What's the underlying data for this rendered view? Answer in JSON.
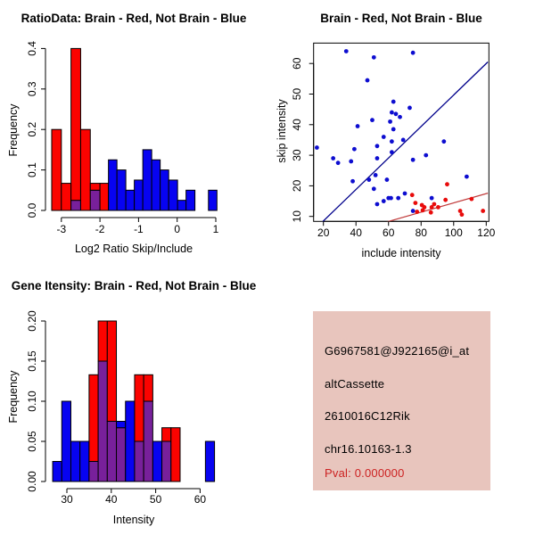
{
  "colors": {
    "hist_red": "#fb0300",
    "hist_blue": "#0703f1",
    "overlap_purple": "#78209b",
    "scatter_blue": "#0d0dd0",
    "scatter_red": "#e80b0b",
    "blue_line": "#00008b",
    "red_line": "#c03a3a",
    "info_bg": "#e8c5bd",
    "pval_red": "#cc2222",
    "text": "#000000"
  },
  "chart_data": [
    {
      "type": "bar",
      "subtype": "overlaid-histogram",
      "title": "RatioData: Brain - Red, Not Brain - Blue",
      "xlabel": "Log2 Ratio Skip/Include",
      "ylabel": "Frequency",
      "series_names": [
        "Brain (red)",
        "Not Brain (blue)"
      ],
      "x_ticks": [
        -3,
        -2,
        -1,
        0,
        1
      ],
      "y_ticks": [
        "0.0",
        "0.1",
        "0.2",
        "0.3",
        "0.4"
      ],
      "xlim": [
        -3.45,
        1.15
      ],
      "ylim": [
        0,
        0.4
      ],
      "grid": false,
      "bars": [
        {
          "x0": -3.25,
          "x1": -3.0,
          "red": 0.2,
          "blue": 0
        },
        {
          "x0": -3.0,
          "x1": -2.75,
          "red": 0.067,
          "blue": 0
        },
        {
          "x0": -2.75,
          "x1": -2.5,
          "red": 0.4,
          "blue": 0.025
        },
        {
          "x0": -2.5,
          "x1": -2.25,
          "red": 0.2,
          "blue": 0
        },
        {
          "x0": -2.25,
          "x1": -2.0,
          "red": 0.067,
          "blue": 0.05
        },
        {
          "x0": -2.0,
          "x1": -1.78,
          "red": 0.067,
          "blue": 0
        },
        {
          "x0": -1.78,
          "x1": -1.56,
          "red": 0,
          "blue": 0.125
        },
        {
          "x0": -1.56,
          "x1": -1.33,
          "red": 0,
          "blue": 0.1
        },
        {
          "x0": -1.33,
          "x1": -1.11,
          "red": 0,
          "blue": 0.05
        },
        {
          "x0": -1.11,
          "x1": -0.89,
          "red": 0,
          "blue": 0.075
        },
        {
          "x0": -0.89,
          "x1": -0.66,
          "red": 0,
          "blue": 0.15
        },
        {
          "x0": -0.66,
          "x1": -0.44,
          "red": 0,
          "blue": 0.125
        },
        {
          "x0": -0.44,
          "x1": -0.22,
          "red": 0,
          "blue": 0.1
        },
        {
          "x0": -0.22,
          "x1": 0.01,
          "red": 0,
          "blue": 0.075
        },
        {
          "x0": 0.01,
          "x1": 0.23,
          "red": 0,
          "blue": 0.025
        },
        {
          "x0": 0.23,
          "x1": 0.46,
          "red": 0,
          "blue": 0.05
        },
        {
          "x0": 0.81,
          "x1": 1.03,
          "red": 0,
          "blue": 0.05
        }
      ]
    },
    {
      "type": "scatter",
      "title": "Brain - Red, Not Brain - Blue",
      "xlabel": "include intensity",
      "ylabel": "skip intensity",
      "series_names": [
        "Brain (red)",
        "Not Brain (blue)"
      ],
      "x_ticks": [
        20,
        40,
        60,
        80,
        100,
        120
      ],
      "y_ticks": [
        10,
        20,
        30,
        40,
        50,
        60
      ],
      "xlim": [
        14,
        126
      ],
      "ylim": [
        7,
        66
      ],
      "grid": false,
      "blue_points": [
        [
          16,
          32.5
        ],
        [
          26,
          29
        ],
        [
          29,
          27.5
        ],
        [
          34,
          64
        ],
        [
          37,
          28
        ],
        [
          38,
          21.5
        ],
        [
          39,
          32
        ],
        [
          41,
          39.5
        ],
        [
          47,
          54.5
        ],
        [
          48,
          22
        ],
        [
          50,
          41.5
        ],
        [
          51,
          62
        ],
        [
          51,
          19
        ],
        [
          52,
          23.5
        ],
        [
          53,
          14
        ],
        [
          53,
          29
        ],
        [
          53,
          33
        ],
        [
          57,
          15
        ],
        [
          57,
          36
        ],
        [
          59,
          22
        ],
        [
          60,
          16
        ],
        [
          61.5,
          16
        ],
        [
          61,
          41
        ],
        [
          62,
          31
        ],
        [
          62,
          34.5
        ],
        [
          62,
          44
        ],
        [
          63,
          38.5
        ],
        [
          63,
          47.5
        ],
        [
          64.5,
          43.5
        ],
        [
          66,
          16
        ],
        [
          67,
          42.5
        ],
        [
          69,
          35
        ],
        [
          70,
          17.5
        ],
        [
          73,
          45.5
        ],
        [
          75,
          11.8
        ],
        [
          75,
          28.5
        ],
        [
          75,
          63.5
        ],
        [
          83,
          30
        ],
        [
          86.5,
          16
        ],
        [
          94,
          34.5
        ],
        [
          108,
          23
        ]
      ],
      "red_points": [
        [
          74.5,
          17
        ],
        [
          76.5,
          14.4
        ],
        [
          77.5,
          11.5
        ],
        [
          80.5,
          13.7
        ],
        [
          81,
          12
        ],
        [
          82,
          13
        ],
        [
          86,
          11.3
        ],
        [
          86.5,
          13
        ],
        [
          88,
          14
        ],
        [
          90.5,
          13
        ],
        [
          95,
          15.4
        ],
        [
          96,
          20.5
        ],
        [
          104,
          11.8
        ],
        [
          105,
          10.6
        ],
        [
          111,
          15.7
        ],
        [
          118,
          11.8
        ]
      ],
      "blue_line": [
        [
          19,
          8
        ],
        [
          121,
          60.5
        ]
      ],
      "red_line": [
        [
          53,
          7.3
        ],
        [
          121,
          17.6
        ]
      ]
    },
    {
      "type": "bar",
      "subtype": "overlaid-histogram",
      "title": "Gene Itensity: Brain - Red, Not Brain - Blue",
      "xlabel": "Intensity",
      "ylabel": "Frequency",
      "series_names": [
        "Brain (red)",
        "Not Brain (blue)"
      ],
      "x_ticks": [
        30,
        40,
        50,
        60
      ],
      "y_ticks": [
        "0.00",
        "0.05",
        "0.10",
        "0.15",
        "0.20"
      ],
      "xlim": [
        25,
        65
      ],
      "ylim": [
        0,
        0.2
      ],
      "grid": false,
      "bars": [
        {
          "x0": 26.8,
          "x1": 28.85,
          "red": 0,
          "blue": 0.025
        },
        {
          "x0": 28.85,
          "x1": 30.9,
          "red": 0,
          "blue": 0.1
        },
        {
          "x0": 30.9,
          "x1": 32.95,
          "red": 0,
          "blue": 0.05
        },
        {
          "x0": 32.95,
          "x1": 35.0,
          "red": 0,
          "blue": 0.05
        },
        {
          "x0": 35.0,
          "x1": 37.05,
          "red": 0.133,
          "blue": 0.025
        },
        {
          "x0": 37.05,
          "x1": 39.1,
          "red": 0.2,
          "blue": 0.15
        },
        {
          "x0": 39.1,
          "x1": 41.15,
          "red": 0.2,
          "blue": 0.075
        },
        {
          "x0": 41.15,
          "x1": 43.2,
          "red": 0.067,
          "blue": 0.075
        },
        {
          "x0": 43.2,
          "x1": 45.25,
          "red": 0,
          "blue": 0.1
        },
        {
          "x0": 45.25,
          "x1": 47.3,
          "red": 0.133,
          "blue": 0.05
        },
        {
          "x0": 47.3,
          "x1": 49.35,
          "red": 0.133,
          "blue": 0.1
        },
        {
          "x0": 49.35,
          "x1": 51.4,
          "red": 0,
          "blue": 0.05
        },
        {
          "x0": 51.4,
          "x1": 53.45,
          "red": 0.067,
          "blue": 0.05
        },
        {
          "x0": 53.45,
          "x1": 55.5,
          "red": 0.067,
          "blue": 0
        },
        {
          "x0": 61.2,
          "x1": 63.25,
          "red": 0,
          "blue": 0.05
        }
      ]
    }
  ],
  "info_box": {
    "lines": [
      "G6967581@J922165@i_at",
      "altCassette",
      "2610016C12Rik",
      "chr16.10163-1.3",
      "Pval: 0.000000"
    ]
  }
}
